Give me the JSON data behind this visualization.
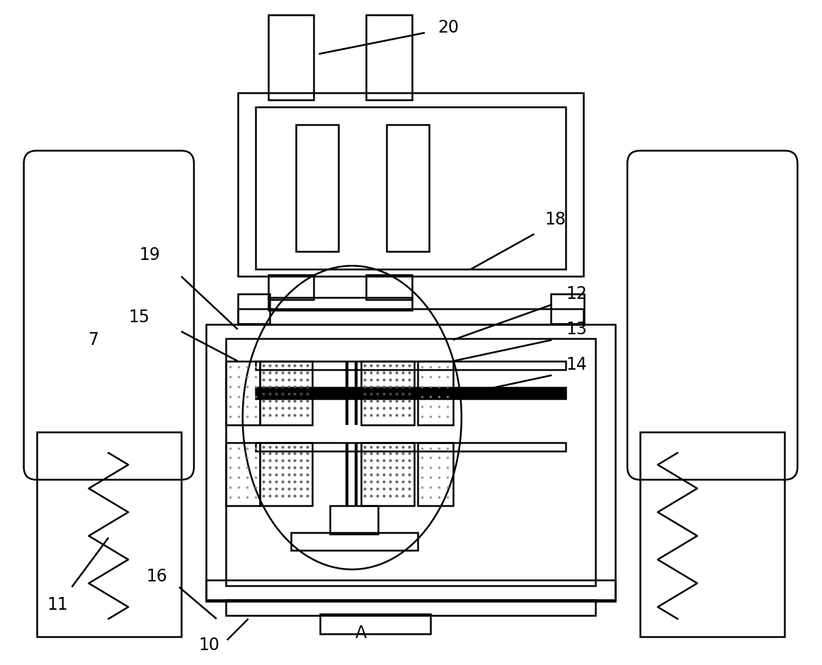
{
  "bg_color": "#ffffff",
  "line_color": "#000000",
  "lw": 1.8,
  "lw_thick": 3.0,
  "fig_width": 11.61,
  "fig_height": 9.39,
  "label_fontsize": 17
}
